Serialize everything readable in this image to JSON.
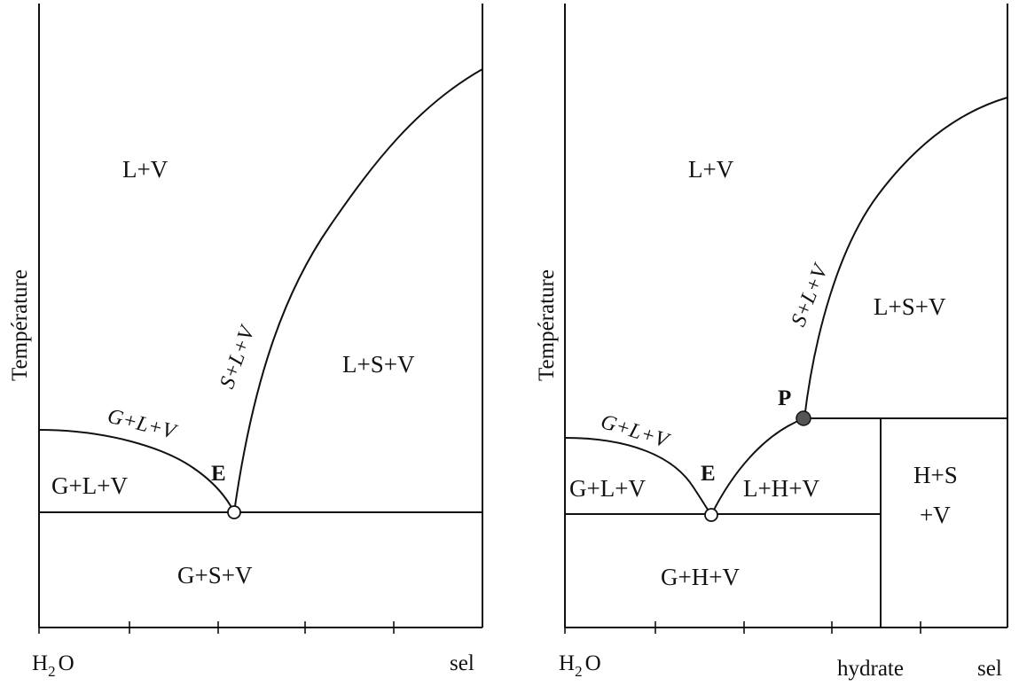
{
  "left_diagram": {
    "ylabel": "Température",
    "x_left": "H",
    "x_left_sub": "2",
    "x_left_tail": "O",
    "x_right": "sel",
    "regions": {
      "top": "L+V",
      "bottom_left": "G+L+V",
      "right": "L+S+V",
      "bottom": "G+S+V"
    },
    "curves": {
      "ice_curve": "G+L+V",
      "salt_curve": "S+L+V"
    },
    "point_E": "E"
  },
  "right_diagram": {
    "ylabel": "Température",
    "x_left": "H",
    "x_left_sub": "2",
    "x_left_tail": "O",
    "x_mid": "hydrate",
    "x_right": "sel",
    "regions": {
      "top": "L+V",
      "bottom_left": "G+L+V",
      "right": "L+S+V",
      "middle": "L+H+V",
      "box_line1": "H+S",
      "box_line2": "+V",
      "bottom": "G+H+V"
    },
    "curves": {
      "ice_curve": "G+L+V",
      "salt_curve": "S+L+V"
    },
    "point_E": "E",
    "point_P": "P"
  }
}
